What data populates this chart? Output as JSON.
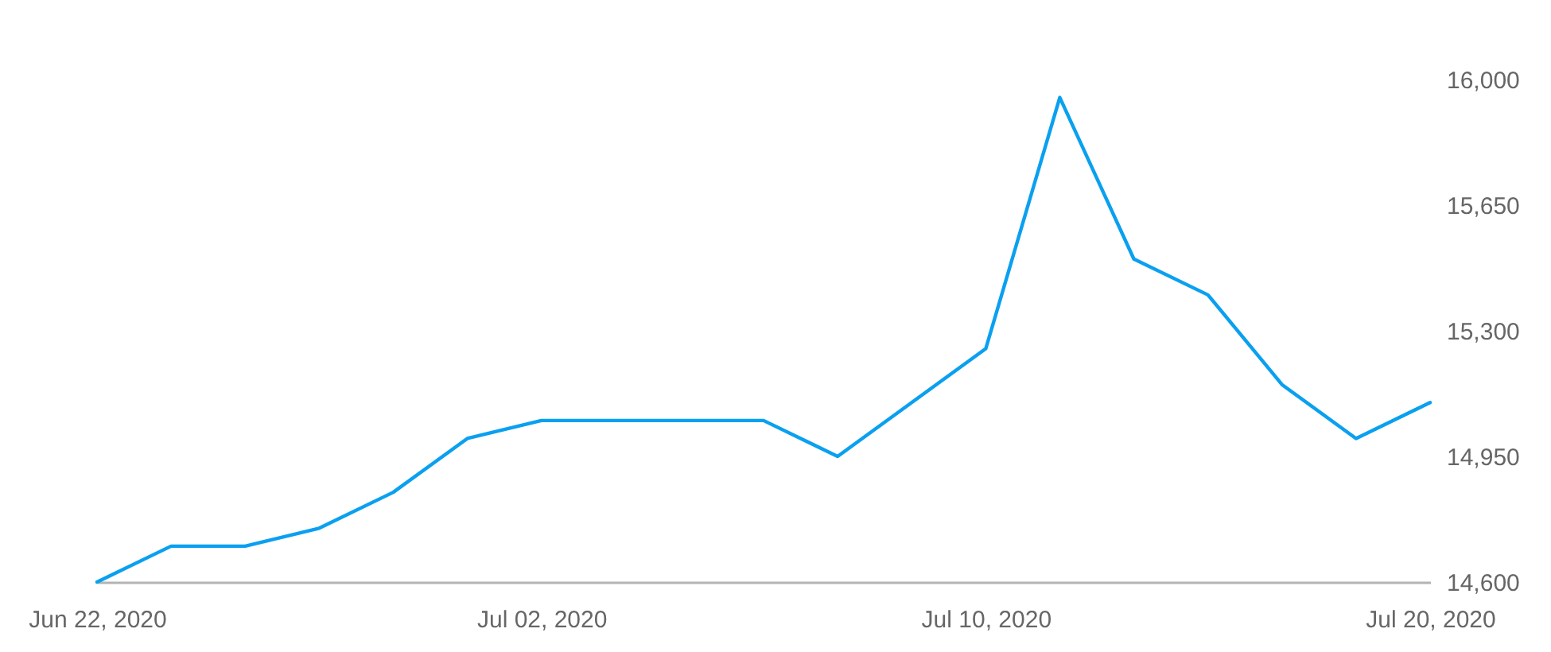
{
  "chart_data": {
    "type": "line",
    "categories": [
      "Jun 22, 2020",
      null,
      null,
      null,
      null,
      null,
      "Jul 02, 2020",
      null,
      null,
      null,
      null,
      null,
      "Jul 10, 2020",
      null,
      null,
      null,
      null,
      null,
      "Jul 20, 2020"
    ],
    "series": [
      {
        "color": "#0aa0f0",
        "values": [
          14600,
          14700,
          14700,
          14750,
          14850,
          15000,
          15050,
          15050,
          15050,
          15050,
          14950,
          15100,
          15250,
          15950,
          15500,
          15400,
          15150,
          15000,
          15100
        ]
      }
    ],
    "ylim": [
      14600,
      16000
    ],
    "yticks": [
      {
        "value": 14600,
        "label": "14,600"
      },
      {
        "value": 14950,
        "label": "14,950"
      },
      {
        "value": 15300,
        "label": "15,300"
      },
      {
        "value": 15650,
        "label": "15,650"
      },
      {
        "value": 16000,
        "label": "16,000"
      }
    ],
    "line_style": "solid"
  }
}
